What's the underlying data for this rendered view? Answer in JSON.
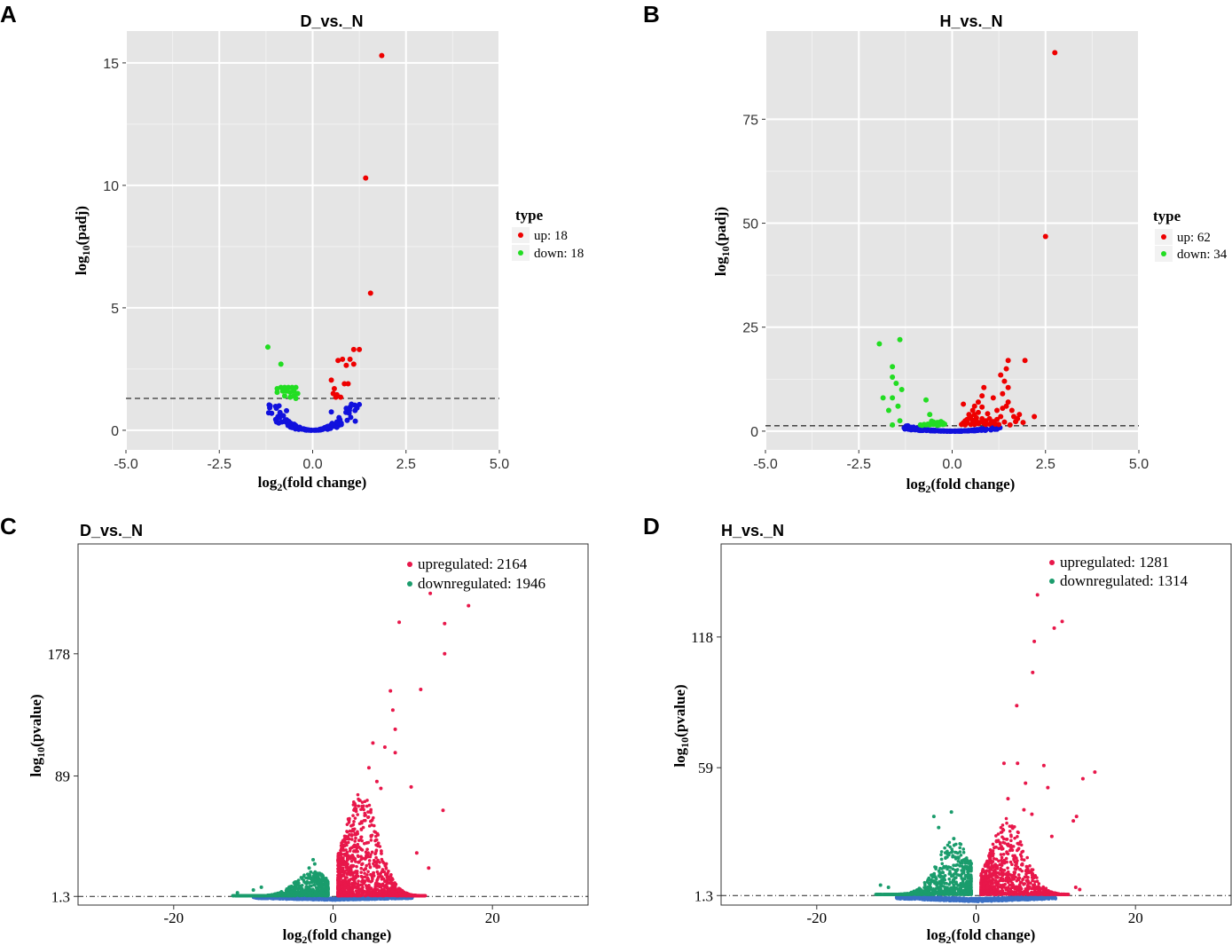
{
  "colors": {
    "up": "#ee0000",
    "down": "#22dd22",
    "ns": "#1111dd",
    "up2": "#e8174a",
    "down2": "#1a9c6c",
    "ns2": "#3a6fc4",
    "panel_bg": "#e5e5e5",
    "grid": "#ffffff"
  },
  "chart_data": [
    {
      "panel": "A",
      "type": "scatter",
      "title": "D_vs._N",
      "xlabel": "log2(fold change)",
      "ylabel": "log10(padj)",
      "xlim": [
        -5.0,
        5.0
      ],
      "ylim": [
        -0.8,
        16.3
      ],
      "xticks": [
        "-5.0",
        "-2.5",
        "0.0",
        "2.5",
        "5.0"
      ],
      "xtick_values": [
        -5,
        -2.5,
        0,
        2.5,
        5
      ],
      "yticks": [
        "0",
        "5",
        "10",
        "15"
      ],
      "ytick_values": [
        0,
        5,
        10,
        15
      ],
      "threshold": 1.3,
      "legend": {
        "title": "type",
        "entries": [
          "up: 18",
          "down: 18"
        ]
      },
      "series": [
        {
          "name": "up",
          "points": [
            [
              1.85,
              15.3
            ],
            [
              1.42,
              10.3
            ],
            [
              1.55,
              5.6
            ],
            [
              1.1,
              3.3
            ],
            [
              1.25,
              3.3
            ],
            [
              0.68,
              2.85
            ],
            [
              0.8,
              2.9
            ],
            [
              1.0,
              2.9
            ],
            [
              0.9,
              2.65
            ],
            [
              1.1,
              2.7
            ],
            [
              0.5,
              2.05
            ],
            [
              0.85,
              1.9
            ],
            [
              0.95,
              1.9
            ],
            [
              0.58,
              1.7
            ],
            [
              0.55,
              1.5
            ],
            [
              0.65,
              1.45
            ],
            [
              0.62,
              1.35
            ],
            [
              0.75,
              1.35
            ]
          ]
        },
        {
          "name": "down",
          "points": [
            [
              -1.2,
              3.4
            ],
            [
              -0.85,
              2.7
            ],
            [
              -0.95,
              1.7
            ],
            [
              -0.85,
              1.75
            ],
            [
              -0.75,
              1.75
            ],
            [
              -0.65,
              1.75
            ],
            [
              -0.55,
              1.75
            ],
            [
              -0.45,
              1.75
            ],
            [
              -0.95,
              1.55
            ],
            [
              -0.8,
              1.6
            ],
            [
              -0.7,
              1.6
            ],
            [
              -0.6,
              1.55
            ],
            [
              -0.5,
              1.6
            ],
            [
              -0.4,
              1.5
            ],
            [
              -0.75,
              1.4
            ],
            [
              -0.6,
              1.35
            ],
            [
              -0.5,
              1.4
            ],
            [
              -0.45,
              1.3
            ]
          ]
        },
        {
          "name": "ns",
          "auto": {
            "n": 120,
            "xspan": 1.2,
            "ymax": 1.25
          },
          "extra": [
            [
              1.25,
              1.05
            ],
            [
              -0.9,
              1.0
            ],
            [
              0.9,
              0.9
            ],
            [
              -0.7,
              0.8
            ],
            [
              0.5,
              0.75
            ]
          ]
        }
      ]
    },
    {
      "panel": "B",
      "type": "scatter",
      "title": "H_vs._N",
      "xlabel": "log2(fold change)",
      "ylabel": "log10(padj)",
      "xlim": [
        -5.0,
        5.0
      ],
      "ylim": [
        -4.5,
        96.2
      ],
      "xticks": [
        "-5.0",
        "-2.5",
        "0.0",
        "2.5",
        "5.0"
      ],
      "xtick_values": [
        -5,
        -2.5,
        0,
        2.5,
        5
      ],
      "yticks": [
        "0",
        "25",
        "50",
        "75"
      ],
      "ytick_values": [
        0,
        25,
        50,
        75
      ],
      "threshold": 1.3,
      "legend": {
        "title": "type",
        "entries": [
          "up: 62",
          "down: 34"
        ]
      },
      "series": [
        {
          "name": "up",
          "points": [
            [
              2.75,
              91
            ],
            [
              2.5,
              46.8
            ],
            [
              1.5,
              17
            ],
            [
              1.95,
              17
            ],
            [
              1.45,
              15
            ],
            [
              1.3,
              13.5
            ],
            [
              1.4,
              12
            ],
            [
              1.5,
              10.5
            ],
            [
              1.35,
              9
            ],
            [
              0.85,
              10.5
            ],
            [
              0.8,
              8.5
            ],
            [
              0.7,
              7
            ],
            [
              1.1,
              8
            ],
            [
              1.5,
              7
            ],
            [
              1.6,
              5
            ],
            [
              1.8,
              4
            ],
            [
              2.2,
              3.5
            ],
            [
              0.3,
              6.5
            ],
            [
              0.55,
              5
            ],
            [
              0.6,
              4
            ],
            [
              0.5,
              3.5
            ],
            [
              0.45,
              3
            ],
            [
              0.65,
              2.5
            ],
            [
              0.55,
              2
            ],
            [
              0.7,
              4.5
            ],
            [
              0.8,
              3
            ],
            [
              0.9,
              2.5
            ],
            [
              1.0,
              3
            ],
            [
              1.2,
              2.8
            ],
            [
              1.3,
              3.5
            ],
            [
              0.35,
              2.5
            ],
            [
              0.4,
              2
            ],
            [
              0.3,
              2
            ],
            [
              0.6,
              1.6
            ],
            [
              0.7,
              1.8
            ],
            [
              0.9,
              1.6
            ],
            [
              1.05,
              2
            ],
            [
              1.4,
              2.2
            ],
            [
              1.7,
              2.3
            ],
            [
              1.9,
              2.1
            ],
            [
              0.25,
              1.6
            ],
            [
              0.5,
              1.6
            ],
            [
              0.75,
              2.1
            ],
            [
              0.85,
              1.9
            ],
            [
              1.15,
              1.7
            ],
            [
              1.55,
              1.5
            ],
            [
              1.25,
              1.6
            ],
            [
              0.35,
              1.5
            ],
            [
              0.65,
              3.2
            ],
            [
              0.45,
              4
            ],
            [
              0.95,
              4.2
            ],
            [
              1.35,
              5.5
            ],
            [
              1.45,
              6
            ],
            [
              1.2,
              5
            ],
            [
              0.8,
              5.8
            ],
            [
              0.6,
              6
            ],
            [
              1.75,
              3
            ],
            [
              1.65,
              3.5
            ],
            [
              0.4,
              2.8
            ],
            [
              0.55,
              2.6
            ],
            [
              1.0,
              1.7
            ],
            [
              1.1,
              2.3
            ]
          ]
        },
        {
          "name": "down",
          "points": [
            [
              -1.95,
              21
            ],
            [
              -1.4,
              22
            ],
            [
              -1.6,
              15.5
            ],
            [
              -1.6,
              13
            ],
            [
              -1.5,
              11.5
            ],
            [
              -1.35,
              10
            ],
            [
              -1.85,
              8
            ],
            [
              -1.6,
              8
            ],
            [
              -0.7,
              7.5
            ],
            [
              -1.45,
              6
            ],
            [
              -1.7,
              5
            ],
            [
              -0.6,
              4
            ],
            [
              -1.4,
              2.5
            ],
            [
              -1.6,
              1.5
            ],
            [
              -0.55,
              1.9
            ],
            [
              -0.6,
              1.5
            ],
            [
              -0.45,
              1.8
            ],
            [
              -0.3,
              1.8
            ],
            [
              -0.35,
              1.5
            ],
            [
              -0.5,
              1.6
            ],
            [
              -0.4,
              1.4
            ],
            [
              -0.25,
              1.6
            ],
            [
              -0.65,
              1.7
            ],
            [
              -0.7,
              1.5
            ],
            [
              -0.75,
              1.6
            ],
            [
              -0.8,
              1.4
            ],
            [
              -0.85,
              1.5
            ],
            [
              -0.5,
              2.2
            ],
            [
              -0.4,
              2.1
            ],
            [
              -0.3,
              2.3
            ],
            [
              -0.2,
              1.7
            ],
            [
              -0.25,
              2
            ],
            [
              -0.55,
              2.4
            ],
            [
              -0.35,
              2.1
            ]
          ]
        },
        {
          "name": "ns",
          "auto": {
            "n": 150,
            "xspan": 1.3,
            "ymax": 1.3
          }
        }
      ]
    },
    {
      "panel": "C",
      "type": "scatter",
      "title": "D_vs._N",
      "xlabel": "log2(fold change)",
      "ylabel": "log10(pvalue)",
      "xlim": [
        -32,
        32
      ],
      "ylim": [
        -5,
        258
      ],
      "xticks": [
        "-20",
        "0",
        "20"
      ],
      "xtick_values": [
        -20,
        0,
        20
      ],
      "yticks": [
        "1.3",
        "89",
        "178"
      ],
      "ytick_values": [
        1.3,
        89,
        178
      ],
      "threshold": 1.3,
      "legend": {
        "entries": [
          "upregulated: 2164",
          "downregulated: 1946"
        ]
      },
      "series": [
        {
          "name": "up",
          "points": [
            [
              12.2,
              222
            ],
            [
              17,
              213
            ],
            [
              8.3,
              201
            ],
            [
              14,
              200
            ],
            [
              14,
              178
            ],
            [
              11,
              152
            ],
            [
              7.2,
              151
            ],
            [
              7.5,
              137
            ],
            [
              7.8,
              123
            ],
            [
              5,
              113
            ],
            [
              6.5,
              110
            ],
            [
              7.8,
              106
            ],
            [
              9.8,
              81
            ],
            [
              13.8,
              64
            ],
            [
              4.5,
              95
            ],
            [
              5.5,
              85
            ],
            [
              6,
              80
            ],
            [
              10.5,
              33
            ],
            [
              12,
              22
            ]
          ],
          "cloud": {
            "n": 1300,
            "center": 3.5,
            "spread": 4.5,
            "ymax": 75,
            "maxx": 11,
            "side": 1
          }
        },
        {
          "name": "down",
          "points": [
            [
              -2.5,
              28
            ],
            [
              -2.3,
              25
            ],
            [
              -3,
              22
            ],
            [
              -2.8,
              19
            ],
            [
              -9,
              8
            ],
            [
              -10,
              6
            ],
            [
              -12,
              4
            ]
          ],
          "cloud": {
            "n": 700,
            "center": -2.5,
            "spread": 4.5,
            "ymax": 18,
            "maxx": 12,
            "side": -1
          }
        },
        {
          "name": "ns",
          "band": {
            "n": 900,
            "xmin": -10,
            "xmax": 10,
            "ymax": 1.3
          }
        }
      ]
    },
    {
      "panel": "D",
      "type": "scatter",
      "title": "H_vs._N",
      "xlabel": "log2(fold change)",
      "ylabel": "log10(pvalue)",
      "xlim": [
        -32,
        32
      ],
      "ylim": [
        -3,
        160
      ],
      "xticks": [
        "-20",
        "0",
        "20"
      ],
      "xtick_values": [
        -20,
        0,
        20
      ],
      "yticks": [
        "1.3",
        "59",
        "118"
      ],
      "ytick_values": [
        1.3,
        59,
        118
      ],
      "threshold": 1.3,
      "legend": {
        "entries": [
          "upregulated: 1281",
          "downregulated: 1314"
        ]
      },
      "series": [
        {
          "name": "up",
          "points": [
            [
              7.7,
              137
            ],
            [
              10.8,
              125
            ],
            [
              9.8,
              122
            ],
            [
              7.3,
              116
            ],
            [
              7.1,
              102
            ],
            [
              5.1,
              87
            ],
            [
              3.5,
              61
            ],
            [
              5.2,
              61
            ],
            [
              6.2,
              52
            ],
            [
              14.9,
              57
            ],
            [
              13.4,
              54
            ],
            [
              12.2,
              35
            ],
            [
              12.6,
              37
            ],
            [
              8.5,
              60
            ],
            [
              9,
              50
            ],
            [
              4,
              45
            ],
            [
              6,
              40
            ],
            [
              7,
              38
            ],
            [
              9.5,
              28
            ],
            [
              12.5,
              5
            ],
            [
              13,
              4
            ]
          ],
          "cloud": {
            "n": 900,
            "center": 4,
            "spread": 4.5,
            "ymax": 35,
            "maxx": 11,
            "side": 1
          }
        },
        {
          "name": "down",
          "points": [
            [
              -3.1,
              39
            ],
            [
              -5.3,
              37
            ],
            [
              -4.7,
              32
            ],
            [
              -2.8,
              27
            ],
            [
              -12,
              6
            ],
            [
              -11,
              5
            ]
          ],
          "cloud": {
            "n": 800,
            "center": -2.8,
            "spread": 4.5,
            "ymax": 25,
            "maxx": 12,
            "side": -1
          }
        },
        {
          "name": "ns",
          "band": {
            "n": 900,
            "xmin": -10,
            "xmax": 10,
            "ymax": 1.3
          }
        }
      ]
    }
  ]
}
